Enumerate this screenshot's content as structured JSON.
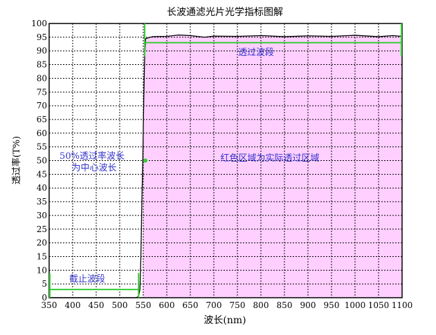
{
  "chart_data": {
    "type": "line",
    "title": "长波通滤光片光学指标图解",
    "xlabel": "波长(nm)",
    "ylabel": "透过率(T%)",
    "xlim": [
      350,
      1100
    ],
    "ylim": [
      0,
      100
    ],
    "xticks": [
      350,
      400,
      450,
      500,
      550,
      600,
      650,
      700,
      750,
      800,
      850,
      900,
      950,
      1000,
      1050,
      1100
    ],
    "yticks": [
      0,
      5,
      10,
      15,
      20,
      25,
      30,
      35,
      40,
      45,
      50,
      55,
      60,
      65,
      70,
      75,
      80,
      85,
      90,
      95,
      100
    ],
    "grid": true,
    "series": [
      {
        "points": [
          [
            350,
            0
          ],
          [
            535,
            0
          ],
          [
            540,
            0.5
          ],
          [
            543,
            3
          ],
          [
            545,
            15
          ],
          [
            547,
            35
          ],
          [
            549,
            50
          ],
          [
            551,
            72
          ],
          [
            553,
            88
          ],
          [
            555,
            94.5
          ],
          [
            570,
            95.2
          ],
          [
            600,
            95.3
          ],
          [
            625,
            95.8
          ],
          [
            650,
            95.6
          ],
          [
            680,
            95
          ],
          [
            700,
            95.4
          ],
          [
            750,
            95.3
          ],
          [
            800,
            95.6
          ],
          [
            850,
            95.2
          ],
          [
            900,
            95.5
          ],
          [
            950,
            95.3
          ],
          [
            1000,
            95.7
          ],
          [
            1050,
            95.2
          ],
          [
            1080,
            95.6
          ],
          [
            1100,
            95.3
          ]
        ],
        "color": "#000000",
        "fill": "#ffd0ff"
      }
    ],
    "annotations": {
      "passband": {
        "label": "透过波段",
        "x_range": [
          553,
          1100
        ],
        "y": 93
      },
      "cutoff": {
        "label": "截止波段",
        "x_range": [
          350,
          540
        ],
        "y": 3
      },
      "center": {
        "label_line1": "50%透过率波长",
        "label_line2": "为中心波长",
        "x": 550,
        "y": 50
      },
      "region": {
        "label": "红色区域为实际透过区域"
      }
    },
    "colors": {
      "annotation": "#33cc33",
      "label_text": "#3333cc",
      "fill": "#ffd0ff"
    }
  }
}
